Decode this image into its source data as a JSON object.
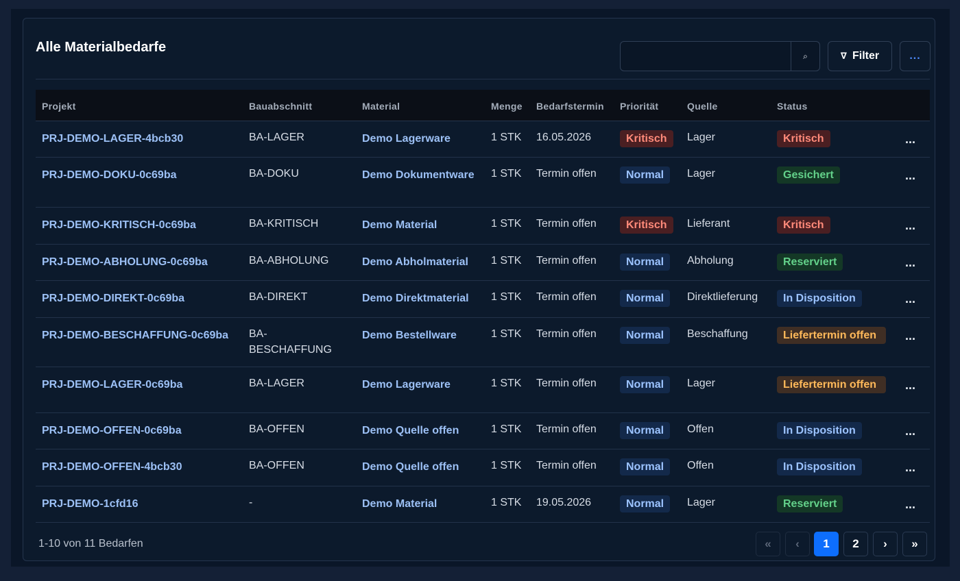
{
  "card": {
    "title": "Alle Materialbedarfe",
    "search_placeholder": "",
    "search_icon": "search-icon",
    "filter_label": "Filter",
    "filter_icon_glyph": "∇",
    "more_label": "...",
    "accent_color": "#0d6efd"
  },
  "table": {
    "headers": [
      "Projekt",
      "Bauabschnitt",
      "Material",
      "Menge",
      "Bedarfstermin",
      "Priorität",
      "Quelle",
      "Status"
    ],
    "rows": [
      {
        "projekt": "PRJ-DEMO-LAGER-4bcb30",
        "ba": "BA-LAGER",
        "material": "Demo Lagerware",
        "menge": "1 STK",
        "termin": "16.05.2026",
        "prio": "Kritisch",
        "quelle": "Lager",
        "status": "Kritisch",
        "more": "..."
      },
      {
        "projekt": "PRJ-DEMO-DOKU-0c69ba",
        "ba": "BA-DOKU",
        "material": "Demo Dokumentware",
        "menge": "1 STK",
        "termin": "Termin offen",
        "prio": "Normal",
        "quelle": "Lager",
        "status": "Gesichert",
        "more": "..."
      },
      {
        "projekt": "PRJ-DEMO-KRITISCH-0c69ba",
        "ba": "BA-KRITISCH",
        "material": "Demo Material",
        "menge": "1 STK",
        "termin": "Termin offen",
        "prio": "Kritisch",
        "quelle": "Lieferant",
        "status": "Kritisch",
        "more": "..."
      },
      {
        "projekt": "PRJ-DEMO-ABHOLUNG-0c69ba",
        "ba": "BA-ABHOLUNG",
        "material": "Demo Abholmaterial",
        "menge": "1 STK",
        "termin": "Termin offen",
        "prio": "Normal",
        "quelle": "Abholung",
        "status": "Reserviert",
        "more": "..."
      },
      {
        "projekt": "PRJ-DEMO-DIREKT-0c69ba",
        "ba": "BA-DIREKT",
        "material": "Demo Direktmaterial",
        "menge": "1 STK",
        "termin": "Termin offen",
        "prio": "Normal",
        "quelle": "Direktlieferung",
        "status": "In Disposition",
        "more": "..."
      },
      {
        "projekt": "PRJ-DEMO-BESCHAFFUNG-0c69ba",
        "ba": "BA-BESCHAFFUNG",
        "material": "Demo Bestellware",
        "menge": "1 STK",
        "termin": "Termin offen",
        "prio": "Normal",
        "quelle": "Beschaffung",
        "status": "Liefertermin offen",
        "more": "..."
      },
      {
        "projekt": "PRJ-DEMO-LAGER-0c69ba",
        "ba": "BA-LAGER",
        "material": "Demo Lagerware",
        "menge": "1 STK",
        "termin": "Termin offen",
        "prio": "Normal",
        "quelle": "Lager",
        "status": "Liefertermin offen",
        "more": "..."
      },
      {
        "projekt": "PRJ-DEMO-OFFEN-0c69ba",
        "ba": "BA-OFFEN",
        "material": "Demo Quelle offen",
        "menge": "1 STK",
        "termin": "Termin offen",
        "prio": "Normal",
        "quelle": "Offen",
        "status": "In Disposition",
        "more": "..."
      },
      {
        "projekt": "PRJ-DEMO-OFFEN-4bcb30",
        "ba": "BA-OFFEN",
        "material": "Demo Quelle offen",
        "menge": "1 STK",
        "termin": "Termin offen",
        "prio": "Normal",
        "quelle": "Offen",
        "status": "In Disposition",
        "more": "..."
      },
      {
        "projekt": "PRJ-DEMO-1cfd16",
        "ba": "-",
        "material": "Demo Material",
        "menge": "1 STK",
        "termin": "19.05.2026",
        "prio": "Normal",
        "quelle": "Lager",
        "status": "Reserviert",
        "more": "..."
      }
    ]
  },
  "footer": {
    "summary": "1-10 von 11 Bedarfen",
    "pagination": {
      "first": "«",
      "prev": "‹",
      "pages": [
        "1",
        "2"
      ],
      "current": "1",
      "next": "›",
      "last": "»"
    }
  },
  "colors": {
    "kritisch": "#ff8a7a",
    "normal": "#9cc3ff",
    "gesichert": "#63d18a",
    "liefertermin_offen": "#ffb95a"
  }
}
